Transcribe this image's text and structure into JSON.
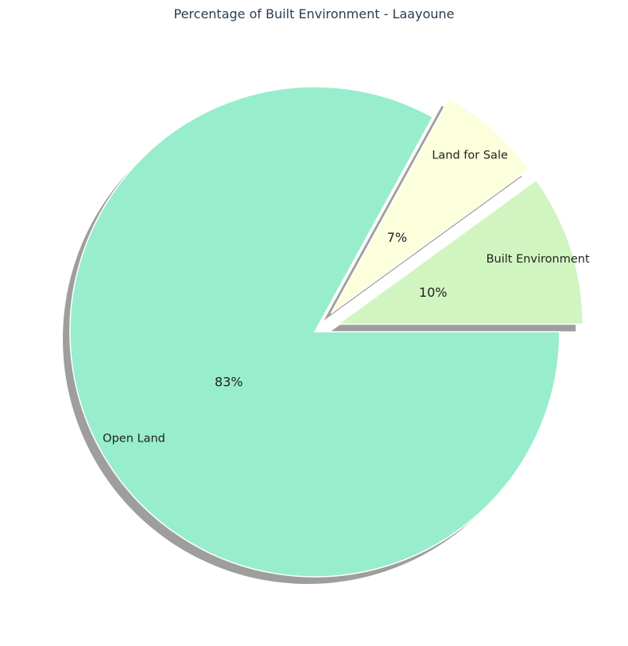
{
  "chart_data": {
    "type": "pie",
    "title": "Percentage of Built Environment - Laayoune",
    "slices": [
      {
        "label": "Built Environment",
        "value": 10,
        "pct_text": "10%",
        "color": "#d1f5c0",
        "explode": true
      },
      {
        "label": "Land for Sale",
        "value": 7,
        "pct_text": "7%",
        "color": "#fbffdc",
        "explode": true
      },
      {
        "label": "Open Land",
        "value": 83,
        "pct_text": "83%",
        "color": "#98edcc",
        "explode": false
      }
    ],
    "start_angle_deg": 0,
    "direction": "counterclockwise",
    "shadow": true,
    "legend": "none"
  }
}
